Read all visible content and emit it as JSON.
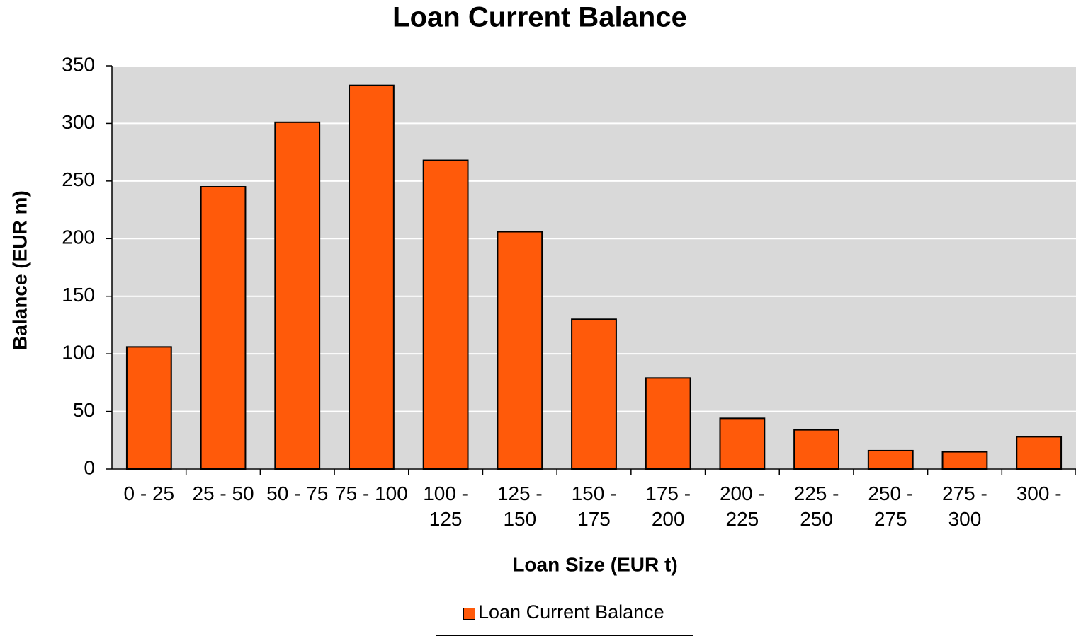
{
  "chart_data": {
    "type": "bar",
    "title": "Loan Current Balance",
    "x_label": "Loan Size (EUR t)",
    "y_label": "Balance (EUR m)",
    "categories": [
      "0 - 25",
      "25 - 50",
      "50 - 75",
      "75 - 100",
      "100 - 125",
      "125 - 150",
      "150 - 175",
      "175 - 200",
      "200 - 225",
      "225 - 250",
      "250 - 275",
      "275 - 300",
      "300 -"
    ],
    "series": [
      {
        "name": "Loan Current Balance",
        "color": "#ff5a0a",
        "values": [
          106,
          245,
          301,
          333,
          268,
          206,
          130,
          79,
          44,
          34,
          16,
          15,
          28
        ]
      }
    ],
    "ylim": [
      0,
      350
    ],
    "yticks": [
      0,
      50,
      100,
      150,
      200,
      250,
      300,
      350
    ],
    "grid": true,
    "legend": "bottom"
  }
}
